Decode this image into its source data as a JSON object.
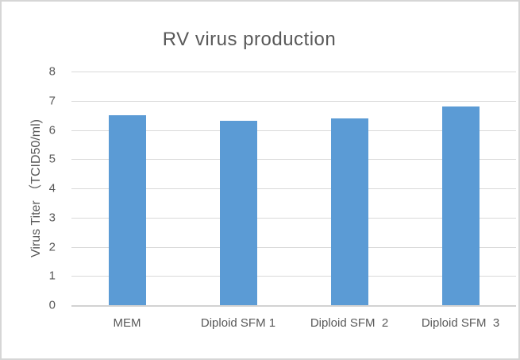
{
  "figure": {
    "background": "#ffffff",
    "border_color": "#d6d6d6"
  },
  "chart_data": {
    "type": "bar",
    "title": "RV virus production",
    "xlabel": "",
    "ylabel": "Virus Titer （TCID50/ml)",
    "categories": [
      "MEM",
      "Diploid SFM 1",
      "Diploid SFM  2",
      "Diploid SFM  3"
    ],
    "values": [
      6.5,
      6.3,
      6.4,
      6.8
    ],
    "ylim": [
      0,
      8
    ],
    "yticks": [
      0,
      1,
      2,
      3,
      4,
      5,
      6,
      7,
      8
    ],
    "grid": true,
    "legend_position": "none",
    "bar_color": "#5b9bd5",
    "text_color": "#595959",
    "gridline_color": "#d9d9d9"
  }
}
